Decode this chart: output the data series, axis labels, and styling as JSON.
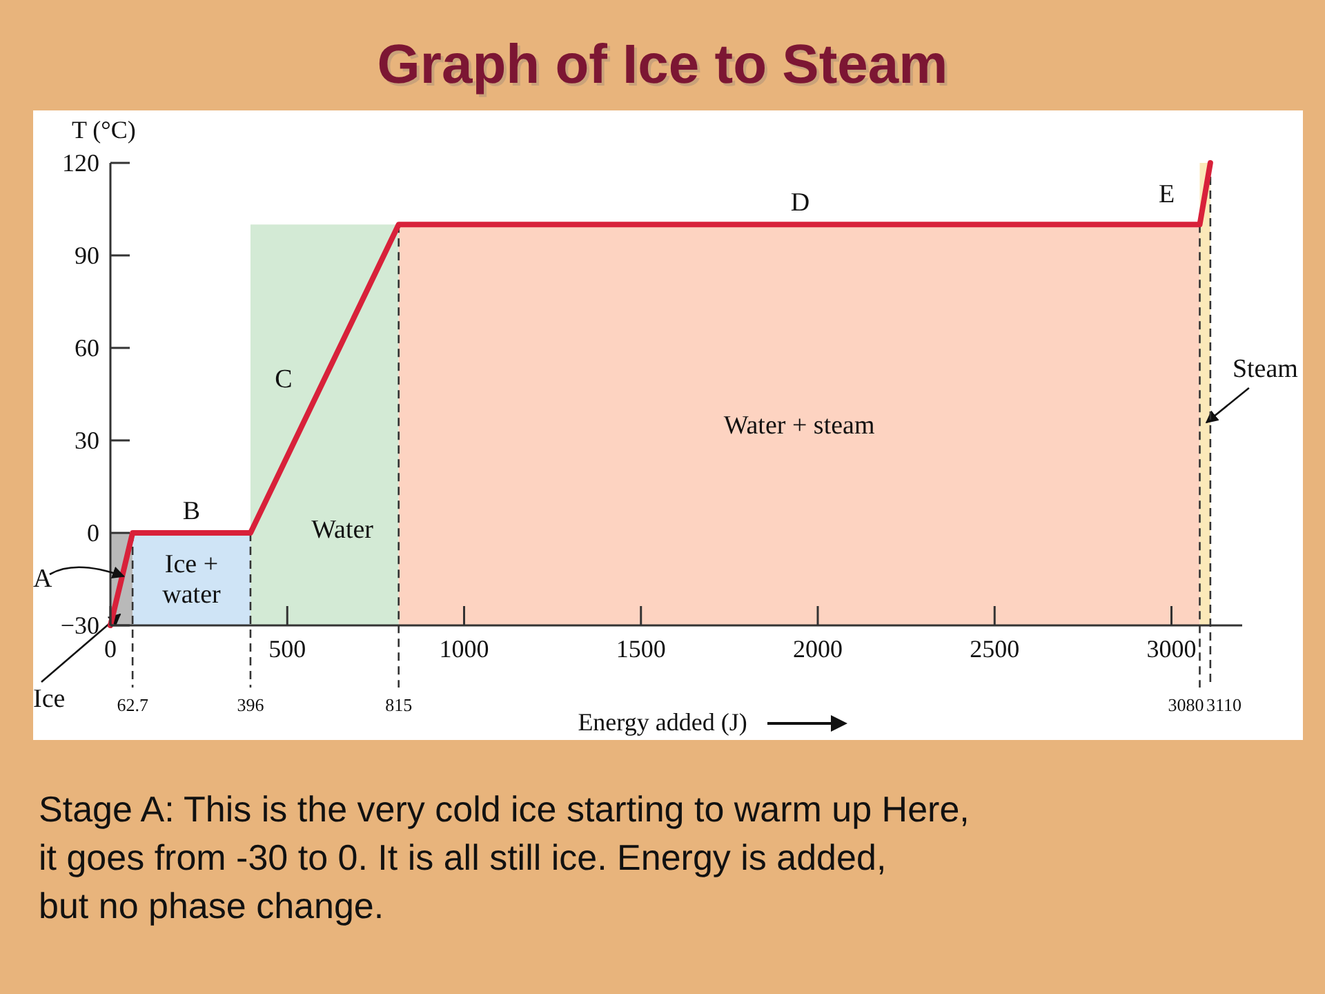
{
  "chart_data": {
    "type": "line",
    "title": "Graph of Ice to Steam",
    "xlabel": "Energy added (J)",
    "ylabel": "T (°C)",
    "series": [
      {
        "color": "#d8213a",
        "x": [
          0,
          62.7,
          396,
          815,
          3080,
          3110
        ],
        "values": [
          -30,
          0,
          0,
          100,
          100,
          120
        ]
      }
    ],
    "xlim": [
      0,
      3200
    ],
    "xticks": [
      0,
      500,
      1000,
      1500,
      2000,
      2500,
      3000
    ],
    "ylim": [
      -30,
      120
    ],
    "yticks": [
      -30,
      0,
      30,
      60,
      90,
      120
    ],
    "grid": false,
    "marker": "none",
    "line_style": "solid",
    "bands": [
      {
        "axis": "x",
        "from": 0,
        "to": 62.7,
        "label": "Ice",
        "color": "#b9b9b9"
      },
      {
        "axis": "x",
        "from": 62.7,
        "to": 396,
        "label": "Ice + water",
        "color": "#cfe4f6"
      },
      {
        "axis": "x",
        "from": 396,
        "to": 815,
        "label": "Water",
        "color": "#d3ead5"
      },
      {
        "axis": "x",
        "from": 815,
        "to": 3080,
        "label": "Water + steam",
        "color": "#fdd3c1"
      },
      {
        "axis": "x",
        "from": 3080,
        "to": 3110,
        "label": "Steam",
        "color": "#fbe9b9"
      }
    ],
    "ref_lines": [
      {
        "axis": "x",
        "value": 62.7,
        "label": "62.7",
        "line_style": "dashed"
      },
      {
        "axis": "x",
        "value": 396,
        "label": "396",
        "line_style": "dashed"
      },
      {
        "axis": "x",
        "value": 815,
        "label": "815",
        "line_style": "dashed"
      },
      {
        "axis": "x",
        "value": 3080,
        "label": "3080",
        "line_style": "dashed"
      },
      {
        "axis": "x",
        "value": 3110,
        "label": "3110",
        "line_style": "dashed"
      }
    ],
    "annotations": [
      {
        "text": "A",
        "x": 30,
        "y": -15
      },
      {
        "text": "B",
        "x": 229,
        "y": 0
      },
      {
        "text": "C",
        "x": 600,
        "y": 50
      },
      {
        "text": "D",
        "x": 1950,
        "y": 100
      },
      {
        "text": "E",
        "x": 3095,
        "y": 110
      },
      "Stage A: This is the very cold ice starting to warm up  Here, it goes from -30 to 0.  It is all still ice.  Energy is added, but no phase change."
    ]
  }
}
